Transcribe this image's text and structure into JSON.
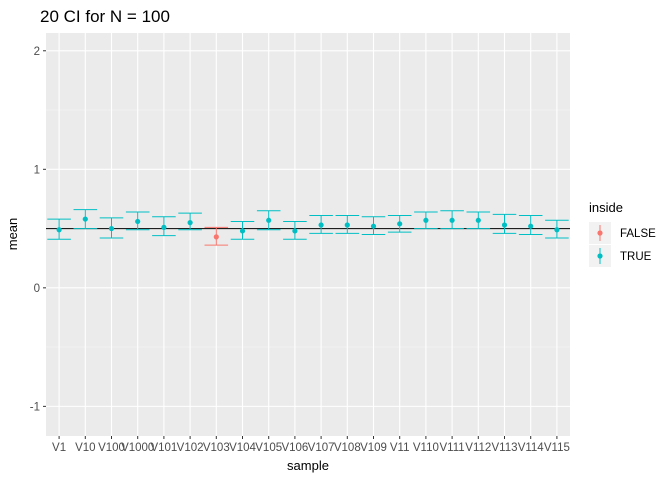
{
  "chart_data": {
    "type": "scatter",
    "title": "20 CI for N = 100",
    "xlabel": "sample",
    "ylabel": "mean",
    "ylim": [
      -1.25,
      2.15
    ],
    "yticks": [
      -1,
      0,
      1,
      2
    ],
    "reference_line": 0.5,
    "grid": true,
    "legend": {
      "title": "inside",
      "position": "right",
      "items": [
        {
          "label": "FALSE",
          "color": "#F8766D"
        },
        {
          "label": "TRUE",
          "color": "#00BFC4"
        }
      ]
    },
    "categories": [
      "V1",
      "V10",
      "V100",
      "V1000",
      "V101",
      "V102",
      "V103",
      "V104",
      "V105",
      "V106",
      "V107",
      "V108",
      "V109",
      "V11",
      "V110",
      "V111",
      "V112",
      "V113",
      "V114",
      "V115"
    ],
    "points": [
      {
        "sample": "V1",
        "mean": 0.49,
        "lower": 0.41,
        "upper": 0.58,
        "inside": "TRUE"
      },
      {
        "sample": "V10",
        "mean": 0.58,
        "lower": 0.5,
        "upper": 0.66,
        "inside": "TRUE"
      },
      {
        "sample": "V100",
        "mean": 0.5,
        "lower": 0.42,
        "upper": 0.59,
        "inside": "TRUE"
      },
      {
        "sample": "V1000",
        "mean": 0.56,
        "lower": 0.49,
        "upper": 0.64,
        "inside": "TRUE"
      },
      {
        "sample": "V101",
        "mean": 0.51,
        "lower": 0.44,
        "upper": 0.6,
        "inside": "TRUE"
      },
      {
        "sample": "V102",
        "mean": 0.55,
        "lower": 0.49,
        "upper": 0.63,
        "inside": "TRUE"
      },
      {
        "sample": "V103",
        "mean": 0.43,
        "lower": 0.36,
        "upper": 0.51,
        "inside": "FALSE"
      },
      {
        "sample": "V104",
        "mean": 0.48,
        "lower": 0.41,
        "upper": 0.56,
        "inside": "TRUE"
      },
      {
        "sample": "V105",
        "mean": 0.57,
        "lower": 0.49,
        "upper": 0.65,
        "inside": "TRUE"
      },
      {
        "sample": "V106",
        "mean": 0.48,
        "lower": 0.41,
        "upper": 0.56,
        "inside": "TRUE"
      },
      {
        "sample": "V107",
        "mean": 0.53,
        "lower": 0.46,
        "upper": 0.61,
        "inside": "TRUE"
      },
      {
        "sample": "V108",
        "mean": 0.53,
        "lower": 0.46,
        "upper": 0.61,
        "inside": "TRUE"
      },
      {
        "sample": "V109",
        "mean": 0.52,
        "lower": 0.45,
        "upper": 0.6,
        "inside": "TRUE"
      },
      {
        "sample": "V11",
        "mean": 0.54,
        "lower": 0.47,
        "upper": 0.61,
        "inside": "TRUE"
      },
      {
        "sample": "V110",
        "mean": 0.57,
        "lower": 0.5,
        "upper": 0.64,
        "inside": "TRUE"
      },
      {
        "sample": "V111",
        "mean": 0.57,
        "lower": 0.5,
        "upper": 0.65,
        "inside": "TRUE"
      },
      {
        "sample": "V112",
        "mean": 0.57,
        "lower": 0.5,
        "upper": 0.64,
        "inside": "TRUE"
      },
      {
        "sample": "V113",
        "mean": 0.53,
        "lower": 0.46,
        "upper": 0.62,
        "inside": "TRUE"
      },
      {
        "sample": "V114",
        "mean": 0.52,
        "lower": 0.45,
        "upper": 0.61,
        "inside": "TRUE"
      },
      {
        "sample": "V115",
        "mean": 0.49,
        "lower": 0.42,
        "upper": 0.57,
        "inside": "TRUE"
      }
    ]
  }
}
